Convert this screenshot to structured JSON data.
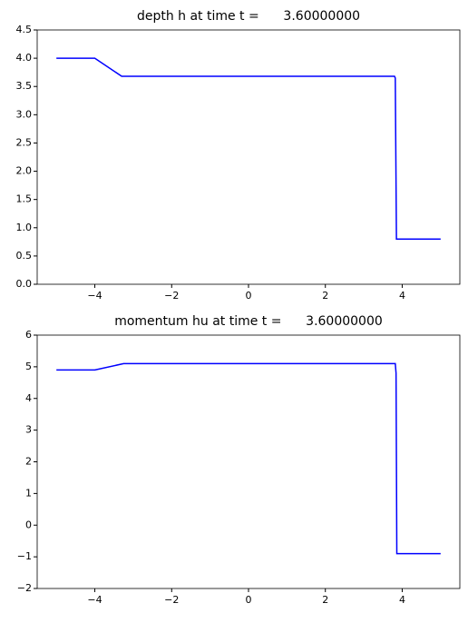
{
  "chart_data": [
    {
      "type": "line",
      "title": "depth h at time t =      3.60000000",
      "x": [
        -5,
        -4,
        -3.3,
        3.8,
        3.82,
        3.85,
        5
      ],
      "series": [
        {
          "name": "h",
          "color": "#0000ff",
          "values": [
            4.0,
            4.0,
            3.68,
            3.68,
            3.65,
            0.8,
            0.8
          ]
        }
      ],
      "xlim": [
        -5.5,
        5.5
      ],
      "xticks": [
        {
          "value": -4,
          "label": "−4"
        },
        {
          "value": -2,
          "label": "−2"
        },
        0,
        2,
        4
      ],
      "ylim": [
        0,
        4.5
      ],
      "yticks": [
        {
          "value": 0,
          "label": "0.0"
        },
        0.5,
        {
          "value": 1,
          "label": "1.0"
        },
        1.5,
        {
          "value": 2,
          "label": "2.0"
        },
        2.5,
        {
          "value": 3,
          "label": "3.0"
        },
        3.5,
        {
          "value": 4,
          "label": "4.0"
        },
        4.5
      ]
    },
    {
      "type": "line",
      "title": "momentum hu at time t =      3.60000000",
      "x": [
        -5,
        -4,
        -3.25,
        3.82,
        3.84,
        3.86,
        5
      ],
      "series": [
        {
          "name": "hu",
          "color": "#0000ff",
          "values": [
            4.9,
            4.9,
            5.1,
            5.1,
            4.8,
            -0.9,
            -0.9
          ]
        }
      ],
      "xlim": [
        -5.5,
        5.5
      ],
      "xticks": [
        {
          "value": -4,
          "label": "−4"
        },
        {
          "value": -2,
          "label": "−2"
        },
        0,
        2,
        4
      ],
      "ylim": [
        -2,
        6
      ],
      "yticks": [
        {
          "value": -2,
          "label": "−2"
        },
        {
          "value": -1,
          "label": "−1"
        },
        0,
        1,
        2,
        3,
        4,
        5,
        6
      ]
    }
  ]
}
